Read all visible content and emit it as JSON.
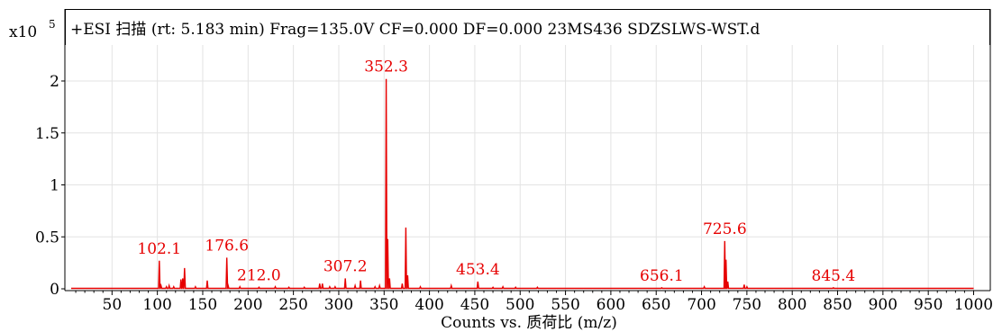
{
  "chart_data": {
    "type": "line",
    "title": "+ESI 扫描 (rt: 5.183 min) Frag=135.0V CF=0.000 DF=0.000 23MS436 SDZSLWS-WST.d",
    "scale_label": "x10",
    "scale_exponent": "5",
    "xlabel": "Counts vs. 质荷比 (m/z)",
    "ylabel": "",
    "xlim": [
      0,
      1000
    ],
    "ylim": [
      0,
      2.2
    ],
    "grid": true,
    "legend": "none",
    "line_color": "#e60000",
    "x_ticks": [
      "50",
      "100",
      "150",
      "200",
      "250",
      "300",
      "350",
      "400",
      "450",
      "500",
      "550",
      "600",
      "650",
      "700",
      "750",
      "800",
      "850",
      "900",
      "950",
      "1000"
    ],
    "y_ticks": [
      "0",
      "0.5",
      "1",
      "1.5",
      "2"
    ],
    "y_tick_values": [
      0,
      0.5,
      1,
      1.5,
      2
    ],
    "peaks": [
      {
        "x": 102.1,
        "y": 0.27
      },
      {
        "x": 104.0,
        "y": 0.03
      },
      {
        "x": 110.0,
        "y": 0.02
      },
      {
        "x": 113.0,
        "y": 0.03
      },
      {
        "x": 118.0,
        "y": 0.02
      },
      {
        "x": 126.0,
        "y": 0.09
      },
      {
        "x": 128.0,
        "y": 0.1
      },
      {
        "x": 130.0,
        "y": 0.2
      },
      {
        "x": 142.0,
        "y": 0.02
      },
      {
        "x": 155.0,
        "y": 0.08
      },
      {
        "x": 176.6,
        "y": 0.3
      },
      {
        "x": 178.0,
        "y": 0.03
      },
      {
        "x": 191.0,
        "y": 0.02
      },
      {
        "x": 212.0,
        "y": 0.015
      },
      {
        "x": 230.0,
        "y": 0.02
      },
      {
        "x": 245.0,
        "y": 0.015
      },
      {
        "x": 262.0,
        "y": 0.015
      },
      {
        "x": 279.0,
        "y": 0.05
      },
      {
        "x": 282.0,
        "y": 0.05
      },
      {
        "x": 290.0,
        "y": 0.02
      },
      {
        "x": 296.0,
        "y": 0.02
      },
      {
        "x": 307.2,
        "y": 0.1
      },
      {
        "x": 318.0,
        "y": 0.03
      },
      {
        "x": 324.0,
        "y": 0.08
      },
      {
        "x": 340.0,
        "y": 0.02
      },
      {
        "x": 345.0,
        "y": 0.03
      },
      {
        "x": 352.3,
        "y": 2.02
      },
      {
        "x": 354.0,
        "y": 0.48
      },
      {
        "x": 356.0,
        "y": 0.1
      },
      {
        "x": 370.0,
        "y": 0.05
      },
      {
        "x": 374.0,
        "y": 0.59
      },
      {
        "x": 376.0,
        "y": 0.13
      },
      {
        "x": 390.0,
        "y": 0.02
      },
      {
        "x": 424.0,
        "y": 0.03
      },
      {
        "x": 453.4,
        "y": 0.07
      },
      {
        "x": 470.0,
        "y": 0.015
      },
      {
        "x": 481.0,
        "y": 0.02
      },
      {
        "x": 495.0,
        "y": 0.015
      },
      {
        "x": 519.0,
        "y": 0.015
      },
      {
        "x": 656.1,
        "y": 0.01
      },
      {
        "x": 703.0,
        "y": 0.02
      },
      {
        "x": 725.6,
        "y": 0.46
      },
      {
        "x": 727.0,
        "y": 0.28
      },
      {
        "x": 729.0,
        "y": 0.07
      },
      {
        "x": 747.0,
        "y": 0.04
      },
      {
        "x": 750.0,
        "y": 0.02
      },
      {
        "x": 845.4,
        "y": 0.01
      }
    ],
    "annotations": [
      {
        "text": "352.3",
        "x": 352.3,
        "y": 2.02
      },
      {
        "text": "725.6",
        "x": 725.6,
        "y": 0.46
      },
      {
        "text": "176.6",
        "x": 176.6,
        "y": 0.3
      },
      {
        "text": "102.1",
        "x": 102.1,
        "y": 0.27
      },
      {
        "text": "307.2",
        "x": 307.2,
        "y": 0.1
      },
      {
        "text": "453.4",
        "x": 453.4,
        "y": 0.07
      },
      {
        "text": "212.0",
        "x": 212.0,
        "y": 0.015
      },
      {
        "text": "656.1",
        "x": 656.1,
        "y": 0.01
      },
      {
        "text": "845.4",
        "x": 845.4,
        "y": 0.01
      }
    ]
  }
}
